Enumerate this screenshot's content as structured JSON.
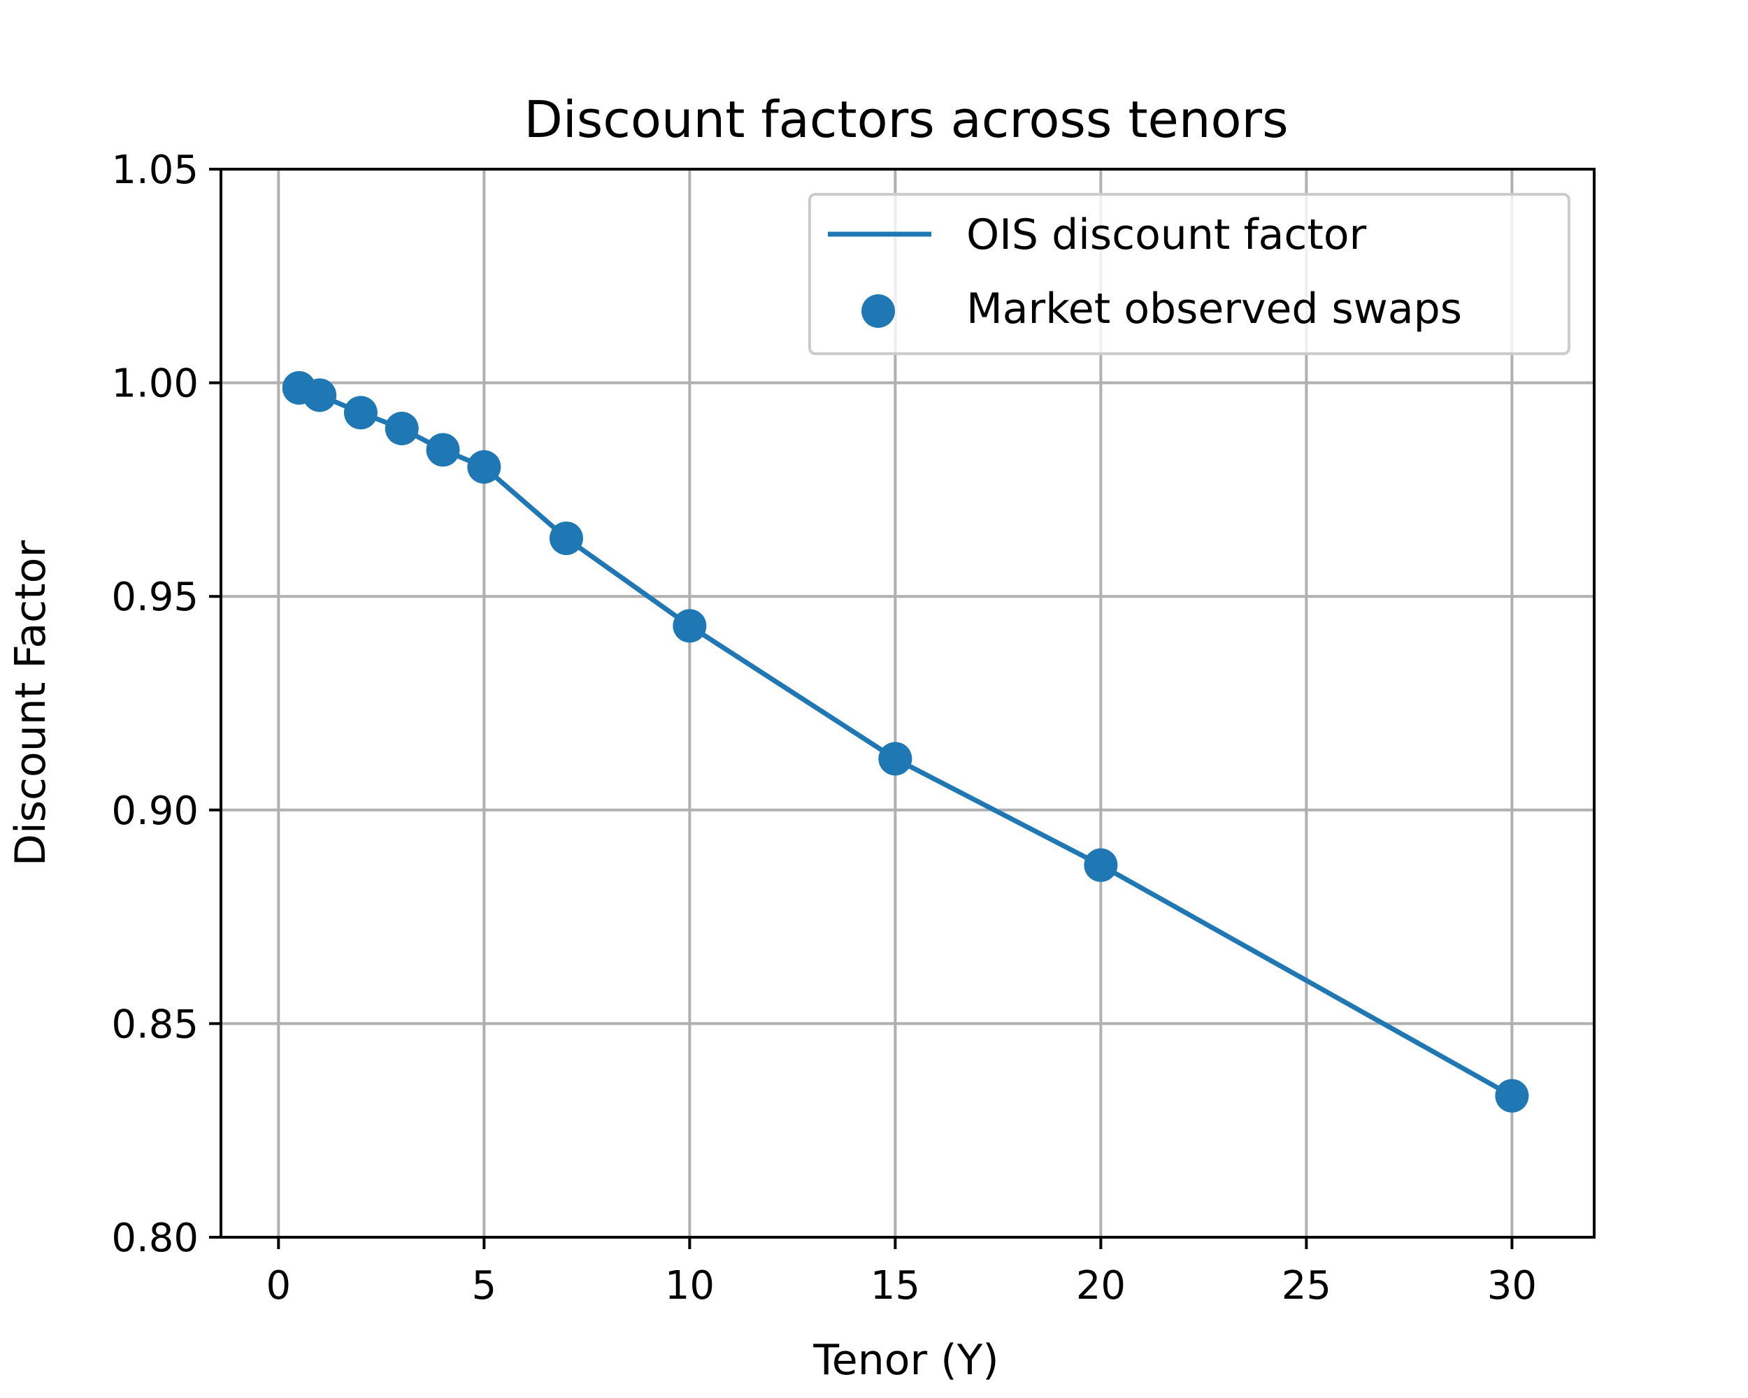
{
  "chart_data": {
    "type": "line",
    "title": "Discount factors across tenors",
    "xlabel": "Tenor (Y)",
    "ylabel": "Discount Factor",
    "xlim": [
      -1.4,
      32
    ],
    "ylim": [
      0.8,
      1.05
    ],
    "xticks": [
      0,
      5,
      10,
      15,
      20,
      25,
      30
    ],
    "xtick_labels": [
      "0",
      "5",
      "10",
      "15",
      "20",
      "25",
      "30"
    ],
    "yticks": [
      0.8,
      0.85,
      0.9,
      0.95,
      1.0,
      1.05
    ],
    "ytick_labels": [
      "0.80",
      "0.85",
      "0.90",
      "0.95",
      "1.00",
      "1.05"
    ],
    "grid": true,
    "legend": "top-right",
    "series": [
      {
        "name": "OIS discount factor",
        "kind": "line",
        "color": "#1f77b4",
        "x": [
          0.5,
          1,
          2,
          3,
          4,
          5,
          7,
          10,
          15,
          20,
          30
        ],
        "y": [
          0.9988,
          0.9971,
          0.993,
          0.9893,
          0.9843,
          0.9803,
          0.9636,
          0.9431,
          0.912,
          0.8871,
          0.8331
        ]
      },
      {
        "name": "Market observed swaps",
        "kind": "scatter",
        "color": "#1f77b4",
        "x": [
          0.5,
          1,
          2,
          3,
          4,
          5,
          7,
          10,
          15,
          20,
          30
        ],
        "y": [
          0.9988,
          0.9971,
          0.993,
          0.9893,
          0.9843,
          0.9803,
          0.9636,
          0.9431,
          0.912,
          0.8871,
          0.8331
        ]
      }
    ]
  }
}
